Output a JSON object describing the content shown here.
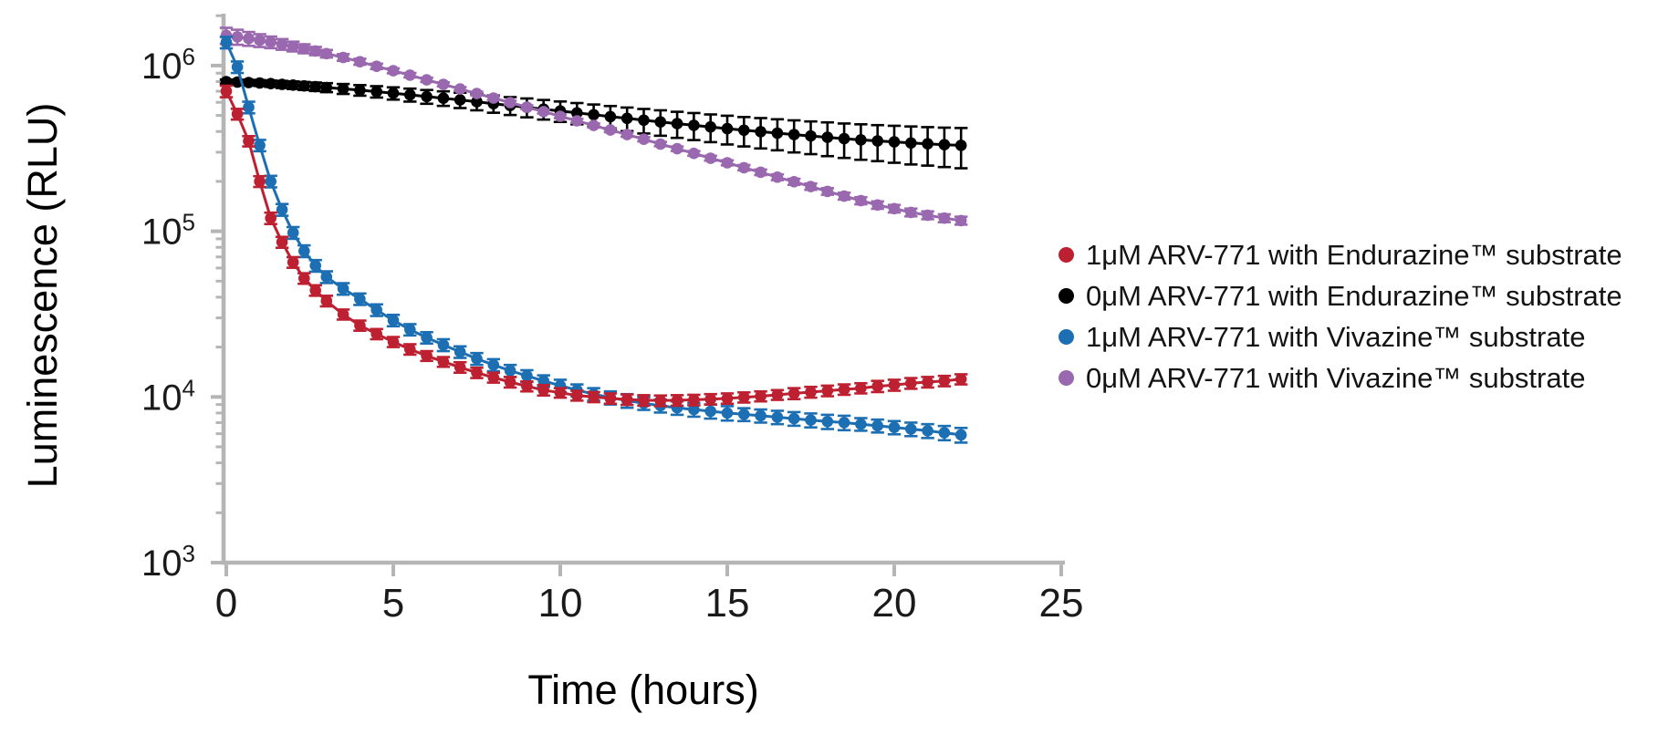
{
  "chart_data": {
    "type": "scatter-line",
    "title": "",
    "xlabel": "Time (hours)",
    "ylabel": "Luminescence (RLU)",
    "y_scale": "log",
    "xlim": [
      0,
      25
    ],
    "ylim": [
      1000,
      2000000
    ],
    "x_ticks": [
      0,
      5,
      10,
      15,
      20,
      25
    ],
    "y_tick_exponents": [
      3,
      4,
      5,
      6
    ],
    "grid": false,
    "legend_position": "right",
    "axis_color": "#b5b5b5",
    "x": [
      0,
      0.33,
      0.67,
      1,
      1.33,
      1.67,
      2,
      2.33,
      2.67,
      3,
      3.5,
      4,
      4.5,
      5,
      5.5,
      6,
      6.5,
      7,
      7.5,
      8,
      8.5,
      9,
      9.5,
      10,
      10.5,
      11,
      11.5,
      12,
      12.5,
      13,
      13.5,
      14,
      14.5,
      15,
      15.5,
      16,
      16.5,
      17,
      17.5,
      18,
      18.5,
      19,
      19.5,
      20,
      20.5,
      21,
      21.5,
      22
    ],
    "series": [
      {
        "key": "black-0uM-endurazine",
        "name": "0μM ARV-771 with Endurazine™ substrate",
        "color": "#000000",
        "values": [
          800000,
          795000,
          790000,
          785000,
          778000,
          770000,
          762000,
          754000,
          746000,
          737000,
          724000,
          710000,
          696000,
          681000,
          666000,
          650000,
          635000,
          620000,
          605000,
          589000,
          574000,
          560000,
          546000,
          532000,
          518000,
          505000,
          492000,
          480000,
          468000,
          457000,
          446000,
          436000,
          426000,
          416000,
          407000,
          399000,
          391000,
          383000,
          376000,
          369000,
          362000,
          356000,
          351000,
          346000,
          341000,
          337000,
          333000,
          330000
        ],
        "errors": [
          24000,
          27000,
          30000,
          32000,
          35000,
          38000,
          40000,
          42000,
          44000,
          46000,
          50000,
          52000,
          55000,
          58000,
          60000,
          62000,
          64000,
          66000,
          68000,
          70000,
          71000,
          73000,
          74000,
          75000,
          76000,
          77000,
          78000,
          78000,
          79000,
          80000,
          80000,
          81000,
          81000,
          82000,
          82000,
          83000,
          83000,
          84000,
          84000,
          85000,
          85000,
          86000,
          86000,
          87000,
          88000,
          88000,
          89000,
          90000
        ]
      },
      {
        "key": "purple-0uM-vivazine",
        "name": "0μM ARV-771 with Vivazine™ substrate",
        "color": "#9a68ae",
        "values": [
          1520000,
          1490000,
          1455000,
          1420000,
          1385000,
          1345000,
          1305000,
          1265000,
          1225000,
          1180000,
          1120000,
          1055000,
          990000,
          930000,
          875000,
          820000,
          770000,
          722000,
          678000,
          637000,
          598000,
          561000,
          527000,
          494000,
          464000,
          435000,
          408000,
          383000,
          359000,
          336000,
          315000,
          295000,
          276000,
          259000,
          242000,
          227000,
          212000,
          199000,
          186000,
          174000,
          163000,
          153000,
          144000,
          137000,
          130000,
          125000,
          120000,
          116000
        ],
        "errors": [
          170000,
          155000,
          140000,
          126000,
          112000,
          100000,
          89000,
          79000,
          70000,
          62000,
          52000,
          44000,
          37000,
          32000,
          27000,
          24000,
          21000,
          19000,
          17000,
          16000,
          15000,
          14000,
          13500,
          13000,
          12500,
          12000,
          11500,
          11000,
          10500,
          10000,
          9800,
          9600,
          9400,
          9200,
          9000,
          8800,
          8600,
          8400,
          8200,
          8000,
          7800,
          7600,
          7400,
          7200,
          7000,
          6800,
          6600,
          6400
        ]
      },
      {
        "key": "blue-1uM-vivazine",
        "name": "1μM ARV-771 with Vivazine™ substrate",
        "color": "#1c6fb2",
        "values": [
          1380000,
          980000,
          560000,
          330000,
          200000,
          135000,
          98000,
          76000,
          62000,
          53000,
          45000,
          39000,
          33500,
          29000,
          25500,
          22800,
          20600,
          18700,
          17000,
          15600,
          14400,
          13400,
          12500,
          11700,
          11000,
          10400,
          9900,
          9500,
          9150,
          8850,
          8600,
          8400,
          8200,
          8000,
          7850,
          7700,
          7550,
          7400,
          7250,
          7100,
          7000,
          6850,
          6700,
          6550,
          6400,
          6250,
          6080,
          5900
        ],
        "errors": [
          110000,
          78000,
          45000,
          26000,
          16000,
          11000,
          8000,
          6200,
          5000,
          4300,
          3600,
          3100,
          2700,
          2300,
          2000,
          1800,
          1700,
          1500,
          1400,
          1300,
          1200,
          1100,
          1000,
          1000,
          900,
          900,
          900,
          900,
          800,
          800,
          800,
          800,
          800,
          800,
          700,
          700,
          700,
          700,
          700,
          700,
          700,
          600,
          600,
          600,
          600,
          600,
          600,
          600
        ]
      },
      {
        "key": "red-1uM-endurazine",
        "name": "1μM ARV-771 with Endurazine™ substrate",
        "color": "#bd2030",
        "values": [
          700000,
          510000,
          350000,
          200000,
          120000,
          86000,
          65000,
          52000,
          44000,
          38000,
          31500,
          27000,
          24000,
          21500,
          19400,
          17700,
          16300,
          15100,
          14000,
          13100,
          12300,
          11600,
          11000,
          10600,
          10200,
          10000,
          9800,
          9650,
          9550,
          9500,
          9550,
          9600,
          9700,
          9800,
          9950,
          10100,
          10300,
          10500,
          10700,
          10900,
          11100,
          11300,
          11600,
          11800,
          12100,
          12300,
          12500,
          12800
        ],
        "errors": [
          56000,
          38000,
          25000,
          15000,
          9500,
          6500,
          4800,
          3800,
          3200,
          2800,
          2200,
          1900,
          1700,
          1500,
          1400,
          1200,
          1100,
          1100,
          1000,
          900,
          900,
          800,
          800,
          700,
          700,
          700,
          700,
          700,
          700,
          700,
          700,
          700,
          700,
          700,
          700,
          700,
          700,
          800,
          800,
          800,
          800,
          800,
          900,
          900,
          900,
          900,
          900,
          900
        ]
      }
    ],
    "legend_order": [
      3,
      0,
      2,
      1
    ]
  }
}
